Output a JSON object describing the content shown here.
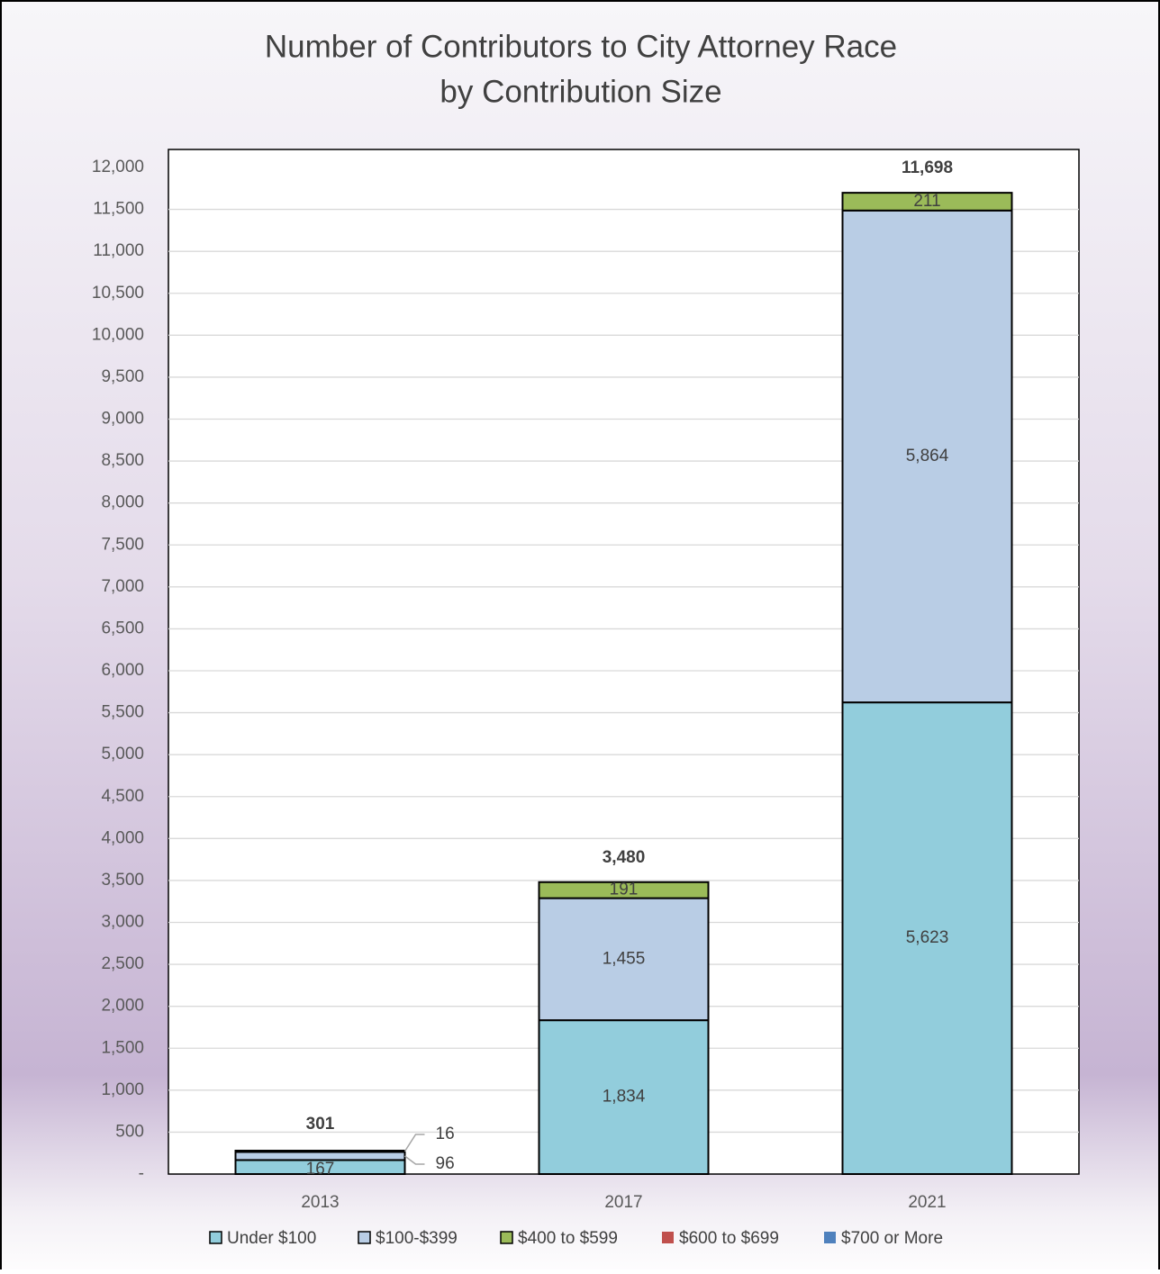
{
  "chart_data": {
    "type": "stacked_bar",
    "title": [
      "Number of Contributors to City Attorney Race",
      "by Contribution Size"
    ],
    "categories": [
      "2013",
      "2017",
      "2021"
    ],
    "series": [
      {
        "name": "Under $100",
        "color": "#92cddc",
        "values": [
          167,
          1834,
          5623
        ],
        "value_labels": [
          "167",
          "1,834",
          "5,623"
        ]
      },
      {
        "name": "$100-$399",
        "color": "#b9cde5",
        "values": [
          96,
          1455,
          5864
        ],
        "value_labels": [
          "96",
          "1,455",
          "5,864"
        ]
      },
      {
        "name": "$400 to $599",
        "color": "#9bbb59",
        "values": [
          16,
          191,
          211
        ]
      },
      {
        "name": "$600 to $699",
        "color": "#c0504d",
        "values": [
          null,
          null,
          null
        ]
      },
      {
        "name": "$700 or More",
        "color": "#4f81bd",
        "values": [
          null,
          null,
          null
        ]
      }
    ],
    "totals": {
      "values": [
        301,
        3480,
        11698
      ],
      "value_labels": [
        "301",
        "3,480",
        "11,698"
      ]
    },
    "ylim": [
      0,
      12000
    ],
    "yticks": [
      {
        "value": 0,
        "label": "-"
      },
      500,
      {
        "value": 1000,
        "label": "1,000"
      },
      {
        "value": 1500,
        "label": "1,500"
      },
      {
        "value": 2000,
        "label": "2,000"
      },
      {
        "value": 2500,
        "label": "2,500"
      },
      {
        "value": 3000,
        "label": "3,000"
      },
      {
        "value": 3500,
        "label": "3,500"
      },
      {
        "value": 4000,
        "label": "4,000"
      },
      {
        "value": 4500,
        "label": "4,500"
      },
      {
        "value": 5000,
        "label": "5,000"
      },
      {
        "value": 5500,
        "label": "5,500"
      },
      {
        "value": 6000,
        "label": "6,000"
      },
      {
        "value": 6500,
        "label": "6,500"
      },
      {
        "value": 7000,
        "label": "7,000"
      },
      {
        "value": 7500,
        "label": "7,500"
      },
      {
        "value": 8000,
        "label": "8,000"
      },
      {
        "value": 8500,
        "label": "8,500"
      },
      {
        "value": 9000,
        "label": "9,000"
      },
      {
        "value": 9500,
        "label": "9,500"
      },
      {
        "value": 10000,
        "label": "10,000"
      },
      {
        "value": 10500,
        "label": "10,500"
      },
      {
        "value": 11000,
        "label": "11,000"
      },
      {
        "value": 11500,
        "label": "11,500"
      },
      {
        "value": 12000,
        "label": "12,000"
      }
    ],
    "grid": true,
    "legend": "bottom"
  }
}
